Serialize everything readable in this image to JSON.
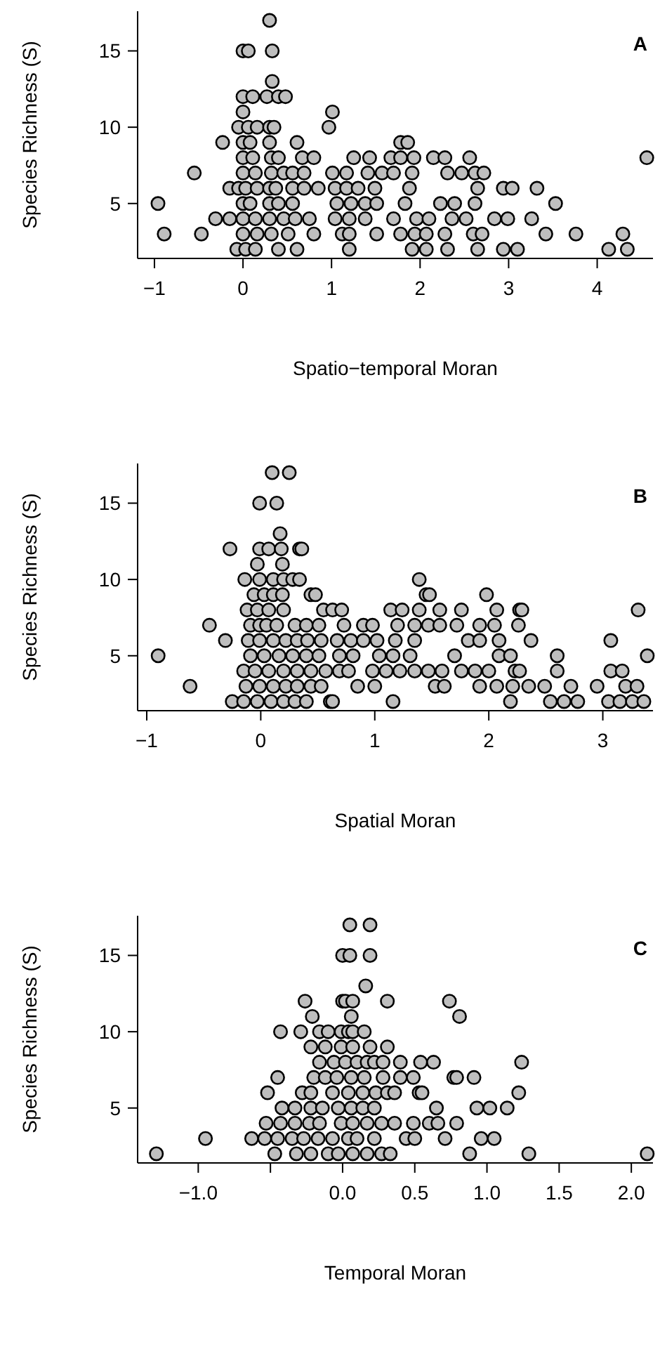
{
  "chart_data": [
    {
      "type": "scatter",
      "xlabel": "Spatio−temporal Moran",
      "ylabel": "Species Richness (S)",
      "annotations": [
        "A"
      ],
      "marker": "circle",
      "xlim": [
        -1.19,
        4.63
      ],
      "ylim": [
        1.4,
        17.6
      ],
      "xticks": [
        {
          "value": -1,
          "label": "−1"
        },
        0,
        1,
        2,
        3,
        4
      ],
      "yticks": [
        5,
        10,
        15
      ],
      "series": [
        {
          "color": "#bebebe",
          "x": [
            0.3,
            0.0,
            0.06,
            0.33,
            0.33,
            0.0,
            0.11,
            0.27,
            0.4,
            0.48,
            0.0,
            1.01,
            -0.05,
            0.06,
            0.16,
            0.3,
            0.35,
            0.97,
            -0.23,
            0.0,
            0.08,
            0.3,
            0.61,
            1.78,
            1.86,
            0.0,
            0.11,
            0.32,
            0.4,
            0.67,
            0.8,
            1.25,
            1.43,
            1.67,
            1.78,
            1.93,
            2.15,
            2.28,
            2.56,
            4.56,
            -0.55,
            0.0,
            0.14,
            0.32,
            0.46,
            0.56,
            0.69,
            1.01,
            1.17,
            1.41,
            1.57,
            1.7,
            1.91,
            2.31,
            2.47,
            2.62,
            2.72,
            -0.15,
            -0.05,
            0.03,
            0.16,
            0.3,
            0.37,
            0.56,
            0.69,
            0.85,
            1.04,
            1.17,
            1.3,
            1.49,
            1.88,
            2.65,
            2.94,
            3.04,
            3.32,
            -0.96,
            0.0,
            0.08,
            0.3,
            0.4,
            0.56,
            1.06,
            1.22,
            1.38,
            1.51,
            1.83,
            2.23,
            2.39,
            2.62,
            3.53,
            -0.31,
            -0.15,
            0.0,
            0.14,
            0.3,
            0.46,
            0.59,
            0.75,
            1.04,
            1.2,
            1.38,
            1.7,
            1.96,
            2.1,
            2.36,
            2.52,
            2.84,
            2.99,
            3.26,
            -0.89,
            -0.47,
            0.0,
            0.16,
            0.32,
            0.51,
            0.8,
            1.12,
            1.2,
            1.51,
            1.78,
            1.94,
            2.07,
            2.28,
            2.6,
            2.7,
            3.42,
            3.76,
            4.29,
            -0.07,
            0.03,
            0.14,
            0.4,
            0.61,
            1.2,
            1.91,
            2.07,
            2.31,
            2.65,
            2.94,
            3.1,
            4.13,
            4.34
          ],
          "values": [
            17,
            15,
            15,
            15,
            13,
            12,
            12,
            12,
            12,
            12,
            11,
            11,
            10,
            10,
            10,
            10,
            10,
            10,
            9,
            9,
            9,
            9,
            9,
            9,
            9,
            8,
            8,
            8,
            8,
            8,
            8,
            8,
            8,
            8,
            8,
            8,
            8,
            8,
            8,
            8,
            7,
            7,
            7,
            7,
            7,
            7,
            7,
            7,
            7,
            7,
            7,
            7,
            7,
            7,
            7,
            7,
            7,
            6,
            6,
            6,
            6,
            6,
            6,
            6,
            6,
            6,
            6,
            6,
            6,
            6,
            6,
            6,
            6,
            6,
            6,
            5,
            5,
            5,
            5,
            5,
            5,
            5,
            5,
            5,
            5,
            5,
            5,
            5,
            5,
            5,
            4,
            4,
            4,
            4,
            4,
            4,
            4,
            4,
            4,
            4,
            4,
            4,
            4,
            4,
            4,
            4,
            4,
            4,
            4,
            3,
            3,
            3,
            3,
            3,
            3,
            3,
            3,
            3,
            3,
            3,
            3,
            3,
            3,
            3,
            3,
            3,
            3,
            3,
            2,
            2,
            2,
            2,
            2,
            2,
            2,
            2,
            2,
            2,
            2,
            2,
            2,
            2
          ]
        }
      ]
    },
    {
      "type": "scatter",
      "xlabel": "Spatial Moran",
      "ylabel": "Species Richness (S)",
      "annotations": [
        "B"
      ],
      "marker": "circle",
      "xlim": [
        -1.08,
        3.44
      ],
      "ylim": [
        1.4,
        17.6
      ],
      "xticks": [
        {
          "value": -1,
          "label": "−1"
        },
        0,
        1,
        2,
        3
      ],
      "yticks": [
        5,
        10,
        15
      ],
      "series": [
        {
          "color": "#bebebe",
          "x": [
            0.1,
            0.25,
            -0.01,
            0.14,
            0.17,
            -0.27,
            -0.01,
            0.07,
            0.18,
            0.34,
            0.36,
            -0.03,
            0.19,
            -0.14,
            -0.01,
            0.11,
            0.2,
            0.28,
            0.34,
            1.39,
            -0.06,
            0.03,
            0.11,
            0.19,
            0.44,
            0.48,
            1.45,
            1.48,
            1.98,
            -0.12,
            -0.03,
            0.07,
            0.2,
            0.55,
            0.63,
            0.71,
            1.14,
            1.24,
            1.39,
            1.57,
            1.76,
            2.07,
            2.27,
            2.29,
            3.31,
            -0.45,
            -0.09,
            -0.01,
            0.05,
            0.14,
            0.3,
            0.4,
            0.51,
            0.73,
            0.9,
            0.98,
            1.2,
            1.35,
            1.47,
            1.57,
            1.72,
            1.92,
            2.05,
            2.26,
            -0.31,
            -0.11,
            -0.01,
            0.11,
            0.22,
            0.32,
            0.41,
            0.53,
            0.67,
            0.79,
            0.9,
            1.02,
            1.18,
            1.35,
            1.82,
            1.92,
            2.09,
            2.37,
            3.07,
            -0.9,
            -0.09,
            0.03,
            0.16,
            0.28,
            0.4,
            0.51,
            0.69,
            0.81,
            1.04,
            1.16,
            1.31,
            1.7,
            2.09,
            2.19,
            2.6,
            3.39,
            -0.15,
            -0.05,
            0.07,
            0.2,
            0.32,
            0.44,
            0.57,
            0.69,
            0.77,
            0.98,
            1.1,
            1.22,
            1.35,
            1.47,
            1.59,
            1.76,
            1.88,
            2.0,
            2.23,
            2.27,
            2.6,
            3.07,
            3.17,
            -0.62,
            -0.13,
            -0.01,
            0.11,
            0.22,
            0.32,
            0.44,
            0.53,
            0.85,
            1.0,
            1.53,
            1.61,
            1.92,
            2.07,
            2.21,
            2.35,
            2.49,
            2.72,
            2.95,
            3.2,
            3.3,
            -0.25,
            -0.15,
            -0.03,
            0.09,
            0.2,
            0.3,
            0.4,
            0.61,
            0.63,
            1.16,
            2.19,
            2.54,
            2.66,
            2.78,
            3.05,
            3.15,
            3.26,
            3.36
          ],
          "values": [
            17,
            17,
            15,
            15,
            13,
            12,
            12,
            12,
            12,
            12,
            12,
            11,
            11,
            10,
            10,
            10,
            10,
            10,
            10,
            10,
            9,
            9,
            9,
            9,
            9,
            9,
            9,
            9,
            9,
            8,
            8,
            8,
            8,
            8,
            8,
            8,
            8,
            8,
            8,
            8,
            8,
            8,
            8,
            8,
            8,
            7,
            7,
            7,
            7,
            7,
            7,
            7,
            7,
            7,
            7,
            7,
            7,
            7,
            7,
            7,
            7,
            7,
            7,
            7,
            6,
            6,
            6,
            6,
            6,
            6,
            6,
            6,
            6,
            6,
            6,
            6,
            6,
            6,
            6,
            6,
            6,
            6,
            6,
            5,
            5,
            5,
            5,
            5,
            5,
            5,
            5,
            5,
            5,
            5,
            5,
            5,
            5,
            5,
            5,
            5,
            4,
            4,
            4,
            4,
            4,
            4,
            4,
            4,
            4,
            4,
            4,
            4,
            4,
            4,
            4,
            4,
            4,
            4,
            4,
            4,
            4,
            4,
            4,
            3,
            3,
            3,
            3,
            3,
            3,
            3,
            3,
            3,
            3,
            3,
            3,
            3,
            3,
            3,
            3,
            3,
            3,
            3,
            3,
            3,
            2,
            2,
            2,
            2,
            2,
            2,
            2,
            2,
            2,
            2,
            2,
            2,
            2,
            2,
            2,
            2,
            2,
            2
          ]
        }
      ]
    },
    {
      "type": "scatter",
      "xlabel": "Temporal Moran",
      "ylabel": "Species Richness (S)",
      "annotations": [
        "C"
      ],
      "marker": "circle",
      "xlim": [
        -1.42,
        2.15
      ],
      "ylim": [
        1.4,
        17.6
      ],
      "xticks": [
        {
          "value": -1,
          "label": "−1.0"
        },
        {
          "value": -0.5,
          "label": null
        },
        {
          "value": 0,
          "label": "0.0"
        },
        {
          "value": 0.5,
          "label": "0.5"
        },
        {
          "value": 1,
          "label": "1.0"
        },
        {
          "value": 1.5,
          "label": "1.5"
        },
        {
          "value": 2,
          "label": "2.0"
        }
      ],
      "yticks": [
        5,
        10,
        15
      ],
      "series": [
        {
          "color": "#bebebe",
          "x": [
            0.05,
            0.19,
            0.0,
            0.05,
            0.19,
            0.16,
            -0.26,
            0.0,
            0.02,
            0.07,
            0.31,
            0.74,
            -0.21,
            0.06,
            0.81,
            -0.43,
            -0.29,
            -0.16,
            -0.1,
            -0.01,
            0.04,
            0.07,
            0.15,
            -0.22,
            -0.12,
            -0.01,
            0.07,
            0.19,
            0.31,
            -0.16,
            -0.06,
            0.02,
            0.1,
            0.17,
            0.22,
            0.28,
            0.4,
            0.54,
            0.63,
            1.24,
            -0.45,
            -0.2,
            -0.12,
            -0.04,
            0.06,
            0.15,
            0.28,
            0.4,
            0.49,
            0.77,
            0.79,
            0.91,
            -0.52,
            -0.28,
            -0.22,
            -0.07,
            0.04,
            0.14,
            0.23,
            0.31,
            0.36,
            0.53,
            0.55,
            1.22,
            -0.42,
            -0.33,
            -0.22,
            -0.14,
            -0.03,
            0.06,
            0.14,
            0.22,
            0.65,
            0.93,
            1.02,
            1.14,
            -0.53,
            -0.43,
            -0.33,
            -0.23,
            -0.16,
            -0.01,
            0.07,
            0.17,
            0.27,
            0.36,
            0.49,
            0.6,
            0.66,
            0.79,
            -0.95,
            -0.63,
            -0.54,
            -0.45,
            -0.35,
            -0.27,
            -0.17,
            -0.07,
            0.04,
            0.1,
            0.22,
            0.44,
            0.5,
            0.71,
            0.96,
            1.05,
            -1.29,
            -0.47,
            -0.32,
            -0.22,
            -0.1,
            -0.03,
            0.07,
            0.17,
            0.27,
            0.33,
            0.88,
            1.29,
            2.11
          ],
          "values": [
            17,
            17,
            15,
            15,
            15,
            13,
            12,
            12,
            12,
            12,
            12,
            12,
            11,
            11,
            11,
            10,
            10,
            10,
            10,
            10,
            10,
            10,
            10,
            9,
            9,
            9,
            9,
            9,
            9,
            8,
            8,
            8,
            8,
            8,
            8,
            8,
            8,
            8,
            8,
            8,
            7,
            7,
            7,
            7,
            7,
            7,
            7,
            7,
            7,
            7,
            7,
            7,
            6,
            6,
            6,
            6,
            6,
            6,
            6,
            6,
            6,
            6,
            6,
            6,
            5,
            5,
            5,
            5,
            5,
            5,
            5,
            5,
            5,
            5,
            5,
            5,
            4,
            4,
            4,
            4,
            4,
            4,
            4,
            4,
            4,
            4,
            4,
            4,
            4,
            4,
            3,
            3,
            3,
            3,
            3,
            3,
            3,
            3,
            3,
            3,
            3,
            3,
            3,
            3,
            3,
            3,
            2,
            2,
            2,
            2,
            2,
            2,
            2,
            2,
            2,
            2,
            2,
            2,
            2
          ]
        }
      ]
    }
  ]
}
